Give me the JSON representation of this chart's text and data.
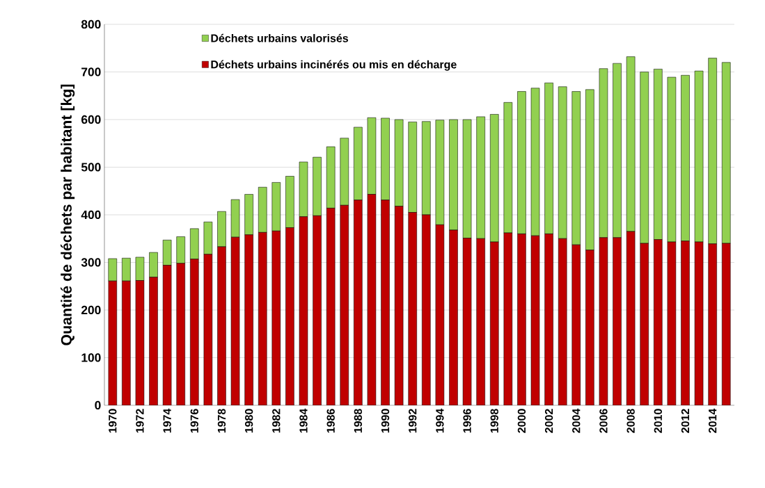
{
  "chart_data": {
    "type": "bar",
    "stacked": true,
    "ylabel": "Quantité de déchets par habitant [kg]",
    "categories": [
      "1970",
      null,
      "1972",
      null,
      "1974",
      null,
      "1976",
      null,
      "1978",
      null,
      "1980",
      null,
      "1982",
      null,
      "1984",
      null,
      "1986",
      null,
      "1988",
      null,
      "1990",
      null,
      "1992",
      null,
      "1994",
      null,
      "1996",
      null,
      "1998",
      null,
      "2000",
      null,
      "2002",
      null,
      "2004",
      null,
      "2006",
      null,
      "2008",
      null,
      "2010",
      null,
      "2012",
      null,
      "2014",
      null
    ],
    "series": [
      {
        "name": "Déchets urbains incinérés ou mis en décharge",
        "color": "#c00000",
        "values": [
          261,
          261,
          262,
          269,
          294,
          298,
          307,
          317,
          333,
          353,
          358,
          363,
          366,
          373,
          396,
          398,
          414,
          420,
          431,
          443,
          431,
          418,
          405,
          400,
          379,
          368,
          351,
          350,
          343,
          362,
          360,
          356,
          360,
          350,
          337,
          326,
          352,
          352,
          365,
          340,
          348,
          343,
          345,
          343,
          339,
          340
        ]
      },
      {
        "name": "Déchets urbains valorisés",
        "color": "#92d050",
        "values": [
          47,
          48,
          49,
          52,
          53,
          56,
          64,
          68,
          74,
          79,
          85,
          95,
          102,
          108,
          115,
          123,
          129,
          141,
          153,
          161,
          172,
          182,
          190,
          196,
          220,
          232,
          249,
          256,
          268,
          274,
          299,
          310,
          317,
          319,
          322,
          337,
          355,
          366,
          367,
          360,
          358,
          346,
          348,
          359,
          390,
          380
        ]
      }
    ],
    "ylim": [
      0,
      800
    ],
    "yticks": [
      0,
      100,
      200,
      300,
      400,
      500,
      600,
      700,
      800
    ],
    "grid": "y",
    "legend": "top left"
  }
}
